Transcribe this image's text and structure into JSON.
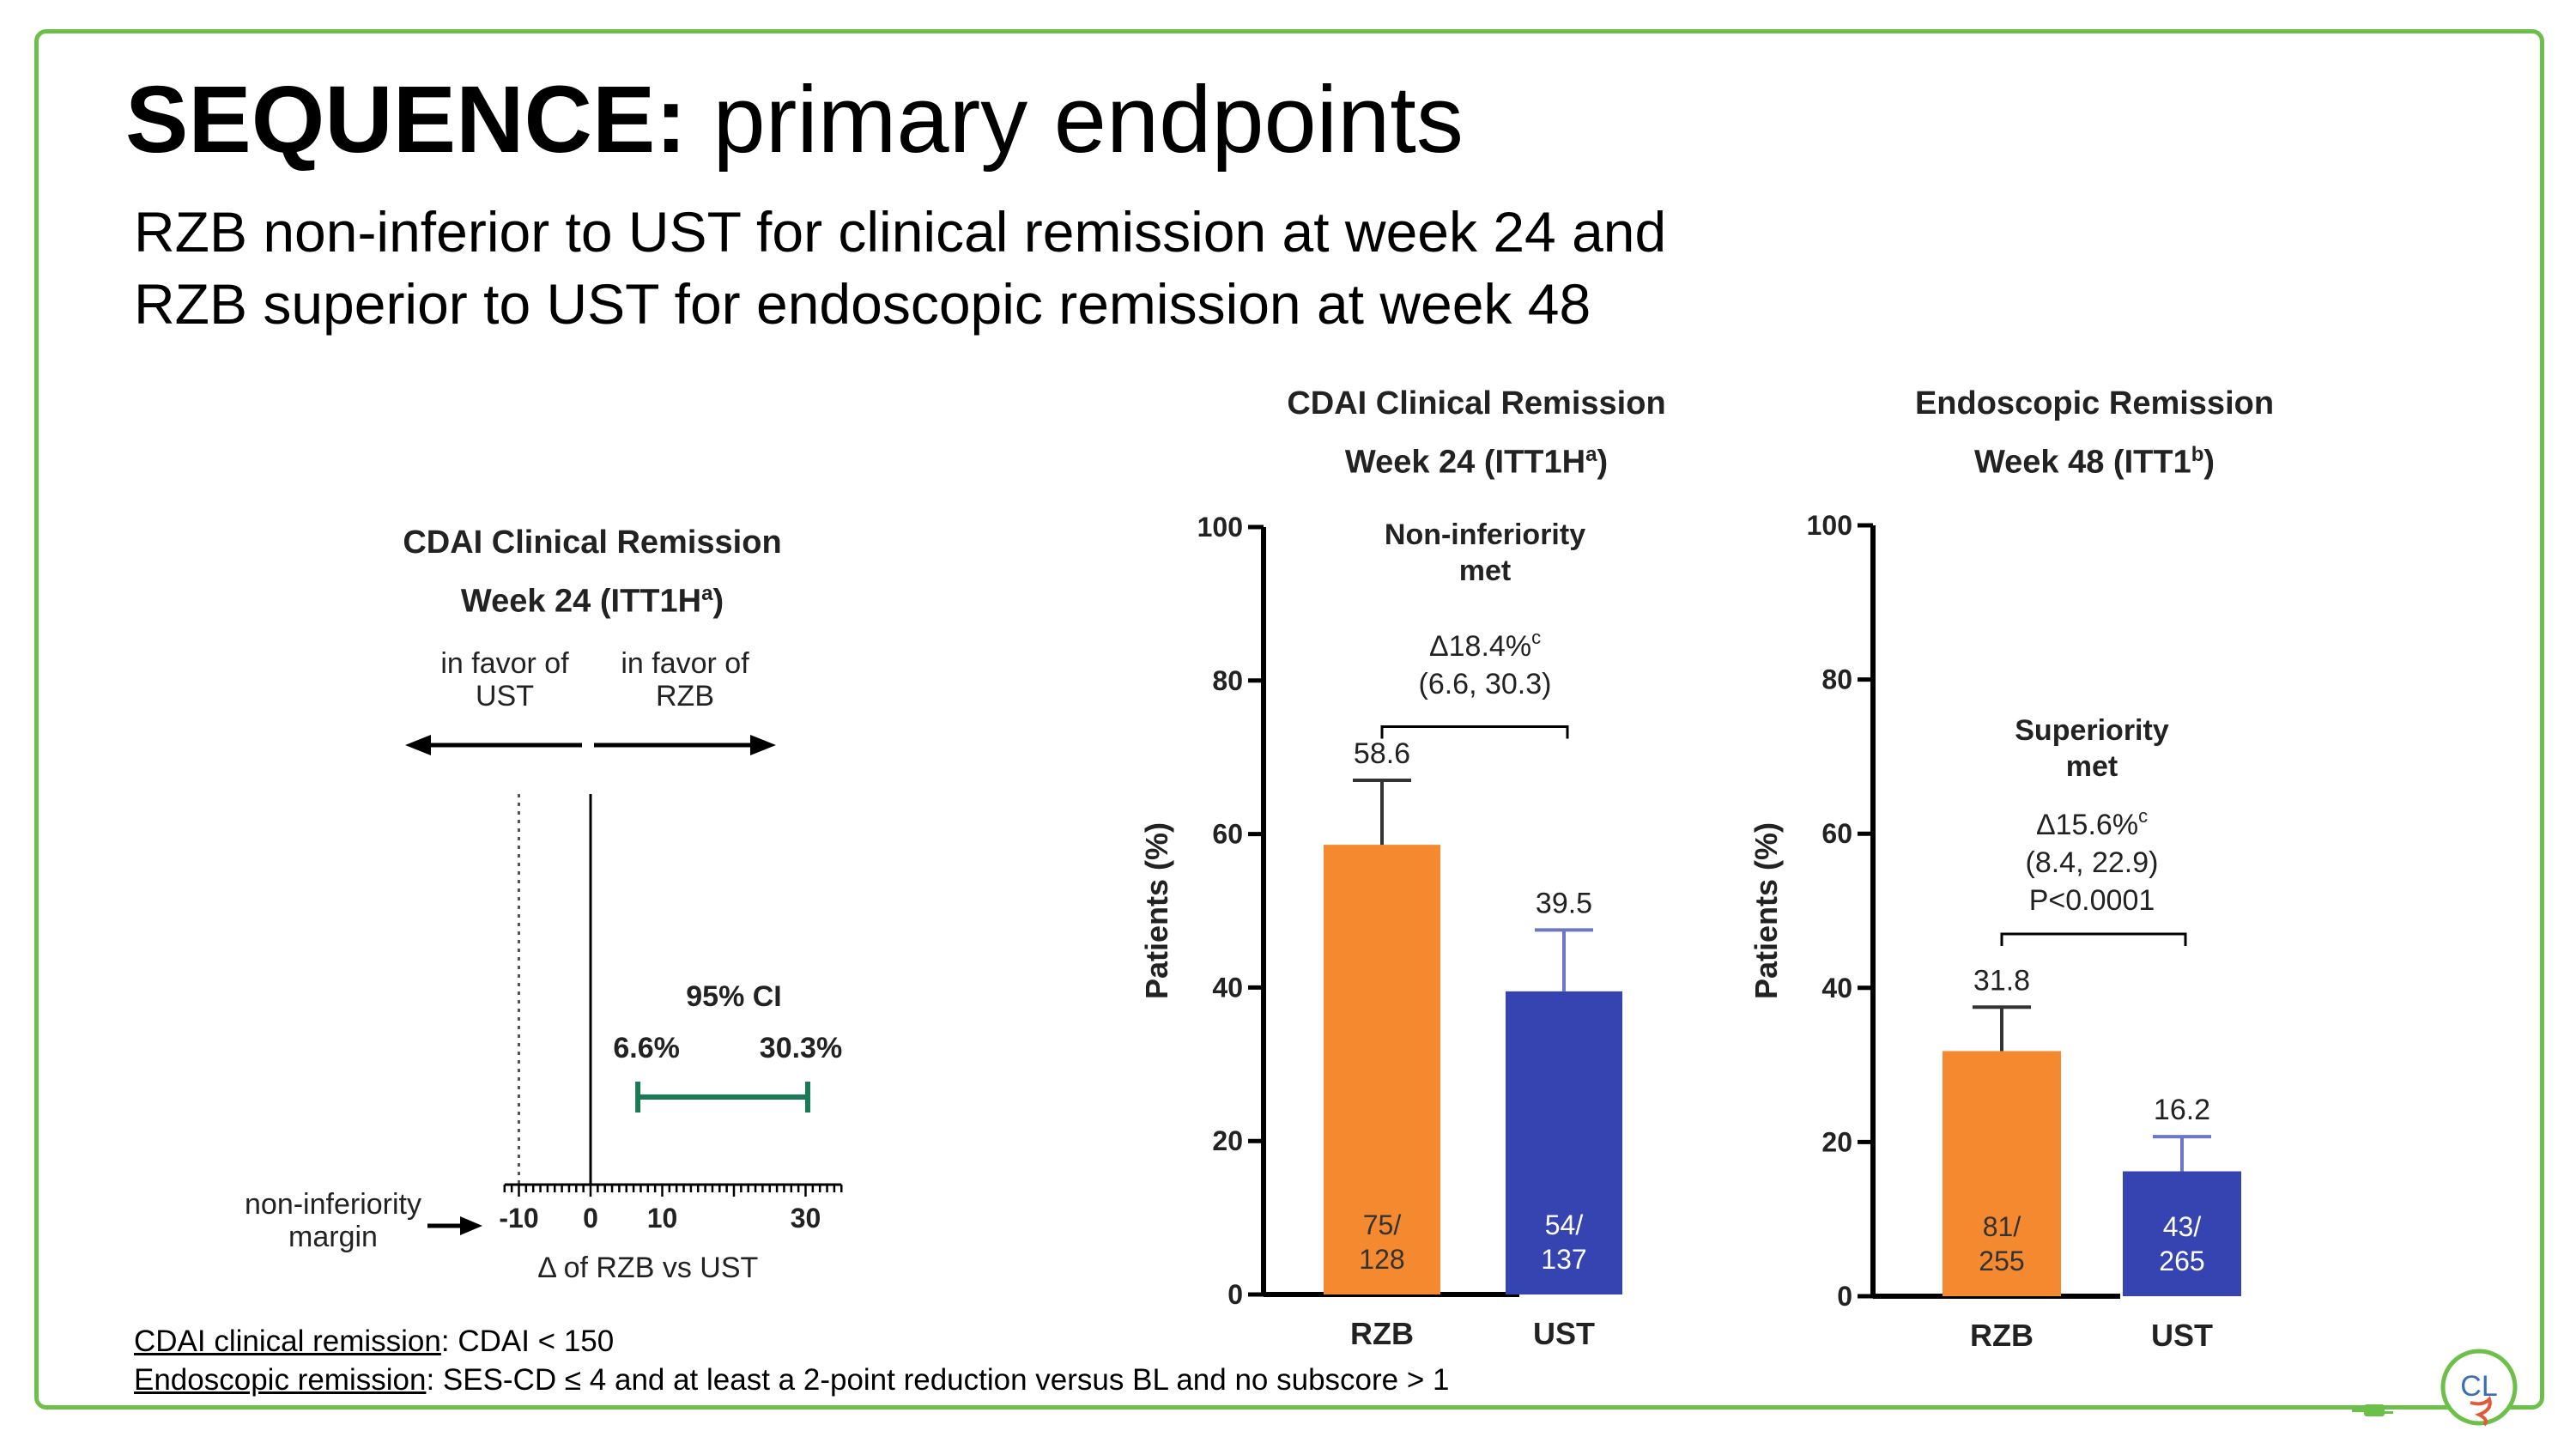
{
  "slide": {
    "title_bold": "SEQUENCE:",
    "title_rest": " primary endpoints",
    "subtitle_line1": "RZB non-inferior to UST for clinical remission at week 24 and",
    "subtitle_line2": "RZB superior to UST for endoscopic remission at week 48",
    "footnote1_term": "CDAI clinical remission",
    "footnote1_rest": ": CDAI < 150",
    "footnote2_term": "Endoscopic remission",
    "footnote2_rest": ": SES-CD ≤ 4 and at least a 2-point reduction versus BL and no subscore > 1",
    "logo_text": "CL"
  },
  "colors": {
    "frame": "#6cc04a",
    "rzb": "#f5892f",
    "ust": "#3544b0",
    "ci_line": "#1a7a55"
  },
  "chart_data": [
    {
      "type": "forest",
      "title_line1": "CDAI Clinical Remission",
      "title_line2": "Week 24 (ITT1H",
      "title_sup": "a",
      "title_close": ")",
      "favor_left": [
        "in favor of",
        "UST"
      ],
      "favor_right": [
        "in favor of",
        "RZB"
      ],
      "margin_label": [
        "non-inferiority",
        "margin"
      ],
      "xlabel": "Δ of RZB vs UST",
      "ticks": [
        -10,
        0,
        10,
        30
      ],
      "xlim": [
        -12,
        35
      ],
      "margin_value": -10,
      "ci_label": "95% CI",
      "ci_low": 6.6,
      "ci_high": 30.3,
      "ci_low_label": "6.6%",
      "ci_high_label": "30.3%"
    },
    {
      "type": "bar",
      "title_line1": "CDAI Clinical Remission",
      "title_line2": "Week 24 (ITT1H",
      "title_sup": "a",
      "title_close": ")",
      "ylabel": "Patients (%)",
      "ylim": [
        0,
        100
      ],
      "yticks": [
        0,
        20,
        40,
        60,
        80,
        100
      ],
      "categories": [
        "RZB",
        "UST"
      ],
      "values": [
        58.6,
        39.5
      ],
      "value_labels": [
        "58.6",
        "39.5"
      ],
      "error_upper": [
        67.0,
        47.5
      ],
      "n_labels": [
        [
          "75/",
          "128"
        ],
        [
          "54/",
          "137"
        ]
      ],
      "annotation": [
        "Non-inferiority",
        "met"
      ],
      "delta": [
        "Δ18.4%",
        "(6.6, 30.3)"
      ],
      "delta_sup": "c",
      "bracket_y": 74
    },
    {
      "type": "bar",
      "title_line1": "Endoscopic Remission",
      "title_line2": "Week 48  (ITT1",
      "title_sup": "b",
      "title_close": ")",
      "ylabel": "Patients (%)",
      "ylim": [
        0,
        100
      ],
      "yticks": [
        0,
        20,
        40,
        60,
        80,
        100
      ],
      "categories": [
        "RZB",
        "UST"
      ],
      "values": [
        31.8,
        16.2
      ],
      "value_labels": [
        "31.8",
        "16.2"
      ],
      "error_upper": [
        37.5,
        20.7
      ],
      "n_labels": [
        [
          "81/",
          "255"
        ],
        [
          "43/",
          "265"
        ]
      ],
      "annotation": [
        "Superiority",
        "met"
      ],
      "delta": [
        "Δ15.6%",
        "(8.4, 22.9)",
        "P<0.0001"
      ],
      "delta_sup": "c",
      "bracket_y": 47
    }
  ]
}
